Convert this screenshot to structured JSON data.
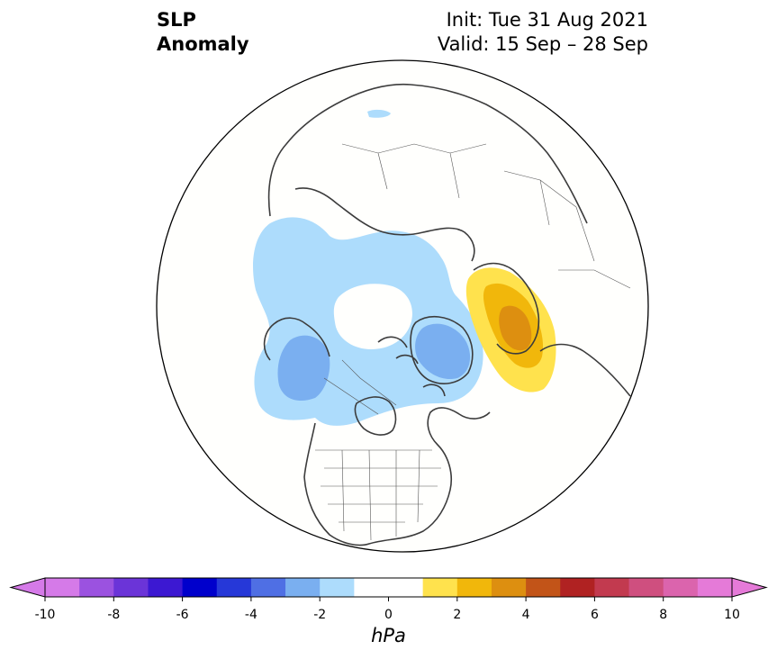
{
  "title": {
    "line1": "SLP",
    "line2": "Anomaly"
  },
  "init": "Init: Tue 31 Aug 2021",
  "valid": "Valid: 15 Sep – 28 Sep",
  "colorbar": {
    "label": "hPa",
    "min": -10,
    "max": 10,
    "step": 1,
    "tick_labels": [
      "-10",
      "-8",
      "-6",
      "-4",
      "-2",
      "0",
      "2",
      "4",
      "6",
      "8",
      "10"
    ],
    "colors": [
      "#d57ae8",
      "#9b52e0",
      "#6b34d8",
      "#3c18d2",
      "#0000cc",
      "#2638d8",
      "#4f6fe4",
      "#7aaff0",
      "#addcfc",
      "#ffffff",
      "#ffffff",
      "#ffe24d",
      "#f1b70b",
      "#dd8f10",
      "#c25418",
      "#b02222",
      "#c23a4f",
      "#cf4f7f",
      "#db64ad",
      "#e57ad8"
    ],
    "under_color": "#d57ae8",
    "over_color": "#e57ad8"
  },
  "map": {
    "projection": "north-polar-stereographic",
    "land_outline_color": "#3c3c3c",
    "anomaly_regions": [
      {
        "name": "north-pacific-alaska-negative",
        "range_hpa": [
          -2,
          -1
        ],
        "color": "#addcfc"
      },
      {
        "name": "gulf-of-alaska-core",
        "range_hpa": [
          -3,
          -2
        ],
        "color": "#7aaff0"
      },
      {
        "name": "greenland-core",
        "range_hpa": [
          -3,
          -2
        ],
        "color": "#7aaff0"
      },
      {
        "name": "kara-sea-small",
        "range_hpa": [
          -2,
          -1
        ],
        "color": "#addcfc"
      },
      {
        "name": "scandinavia-positive",
        "range_hpa": [
          1,
          2
        ],
        "color": "#ffe24d"
      },
      {
        "name": "scandinavia-mid",
        "range_hpa": [
          2,
          3
        ],
        "color": "#f1b70b"
      },
      {
        "name": "scandinavia-core",
        "range_hpa": [
          3,
          4
        ],
        "color": "#dd8f10"
      }
    ]
  }
}
